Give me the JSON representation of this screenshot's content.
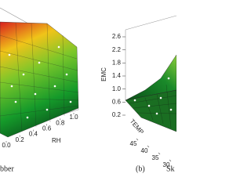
{
  "chart_data": [
    {
      "type": "surface",
      "caption": "bber",
      "xlabel": "RH",
      "xticks": [
        {
          "value": 0,
          "label": "0.0"
        },
        0.2,
        0.4,
        0.6,
        0.8,
        {
          "value": 1,
          "label": "1.0"
        }
      ],
      "xlim": [
        0,
        1
      ]
    },
    {
      "type": "surface",
      "caption_tag": "(b)",
      "caption": "Sk",
      "zlabel": "EMC",
      "ylabel": "TEMP",
      "zticks": [
        0.2,
        0.6,
        {
          "value": 1,
          "label": "1.0"
        },
        1.4,
        1.8,
        2.2,
        2.6
      ],
      "zlim": [
        0.2,
        2.6
      ],
      "yticks": [
        45,
        40,
        35,
        30
      ]
    }
  ]
}
